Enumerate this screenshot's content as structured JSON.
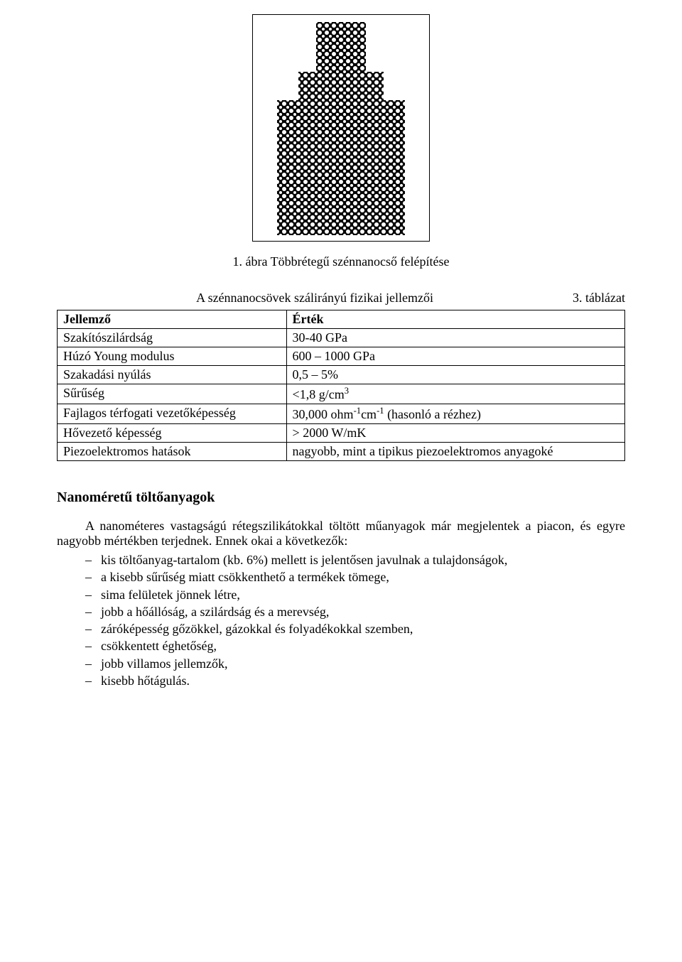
{
  "figure": {
    "caption": "1. ábra Többrétegű szénnanocső felépítése"
  },
  "table": {
    "number": "3. táblázat",
    "subtitle": "A szénnanocsövek szálirányú fizikai jellemzői",
    "header": {
      "c1": "Jellemző",
      "c2": "Érték"
    },
    "rows": [
      {
        "c1": "Szakítószilárdság",
        "c2": "30-40 GPa"
      },
      {
        "c1": "Húzó Young modulus",
        "c2": "600 – 1000 GPa"
      },
      {
        "c1": "Szakadási nyúlás",
        "c2": "0,5 – 5%"
      },
      {
        "c1": "Sűrűség",
        "c2_html": "<1,8 g/cm<sup>3</sup>"
      },
      {
        "c1": "Fajlagos térfogati vezetőképesség",
        "c2_html": "30,000 ohm<sup>-1</sup>cm<sup>-1</sup> (hasonló a rézhez)"
      },
      {
        "c1": "Hővezető képesség",
        "c2": "> 2000 W/mK"
      },
      {
        "c1": "Piezoelektromos hatások",
        "c2": "nagyobb, mint a tipikus piezoelektromos anyagoké"
      }
    ]
  },
  "section": {
    "heading": "Nanoméretű töltőanyagok",
    "intro": "A nanométeres vastagságú rétegszilikátokkal töltött műanyagok már megjelentek a piacon, és egyre nagyobb mértékben terjednek. Ennek okai a következők:",
    "bullets": [
      "kis töltőanyag-tartalom (kb. 6%) mellett is jelentősen javulnak a tulajdonságok,",
      "a kisebb sűrűség miatt csökkenthető a termékek tömege,",
      "sima felületek jönnek létre,",
      "jobb a hőállóság, a szilárdság és a merevség,",
      "záróképesség gőzökkel, gázokkal és folyadékokkal szemben,",
      "csökkentett éghetőség,",
      "jobb villamos jellemzők,",
      "kisebb hőtágulás."
    ]
  }
}
